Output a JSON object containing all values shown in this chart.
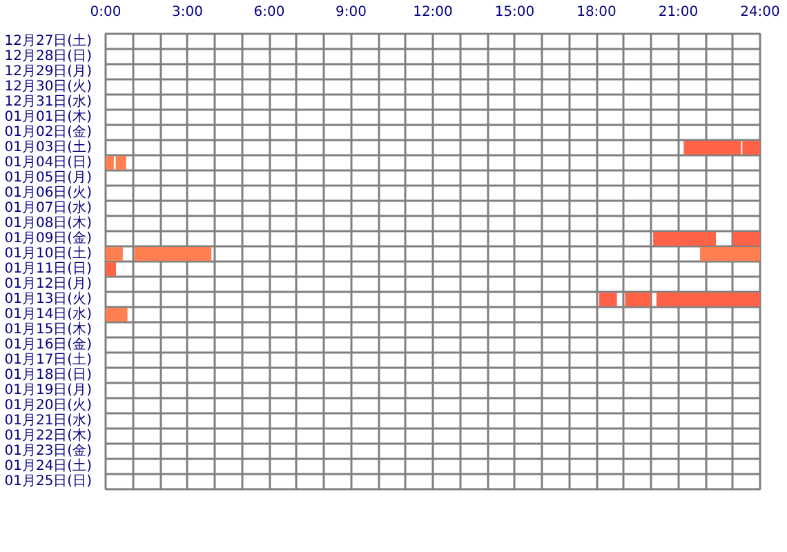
{
  "chart_data": {
    "type": "bar",
    "orientation": "horizontal",
    "categories": [
      "12月27日(土)",
      "12月28日(日)",
      "12月29日(月)",
      "12月30日(火)",
      "12月31日(水)",
      "01月01日(木)",
      "01月02日(金)",
      "01月03日(土)",
      "01月04日(日)",
      "01月05日(月)",
      "01月06日(火)",
      "01月07日(水)",
      "01月08日(木)",
      "01月09日(金)",
      "01月10日(土)",
      "01月11日(日)",
      "01月12日(月)",
      "01月13日(火)",
      "01月14日(水)",
      "01月15日(木)",
      "01月16日(金)",
      "01月17日(土)",
      "01月18日(日)",
      "01月19日(月)",
      "01月20日(火)",
      "01月21日(水)",
      "01月22日(木)",
      "01月23日(金)",
      "01月24日(土)",
      "01月25日(日)"
    ],
    "xlim": [
      0,
      24
    ],
    "xticks": [
      {
        "value": 0,
        "label": "0:00"
      },
      {
        "value": 1,
        "label": null
      },
      {
        "value": 2,
        "label": null
      },
      {
        "value": 3,
        "label": "3:00"
      },
      {
        "value": 4,
        "label": null
      },
      {
        "value": 5,
        "label": null
      },
      {
        "value": 6,
        "label": "6:00"
      },
      {
        "value": 7,
        "label": null
      },
      {
        "value": 8,
        "label": null
      },
      {
        "value": 9,
        "label": "9:00"
      },
      {
        "value": 10,
        "label": null
      },
      {
        "value": 11,
        "label": null
      },
      {
        "value": 12,
        "label": "12:00"
      },
      {
        "value": 13,
        "label": null
      },
      {
        "value": 14,
        "label": null
      },
      {
        "value": 15,
        "label": "15:00"
      },
      {
        "value": 16,
        "label": null
      },
      {
        "value": 17,
        "label": null
      },
      {
        "value": 18,
        "label": "18:00"
      },
      {
        "value": 19,
        "label": null
      },
      {
        "value": 20,
        "label": null
      },
      {
        "value": 21,
        "label": "21:00"
      },
      {
        "value": 22,
        "label": null
      },
      {
        "value": 23,
        "label": null
      },
      {
        "value": 24,
        "label": "24:00"
      }
    ],
    "grid": true,
    "series": [
      {
        "color": "#ff6347",
        "values": [
          null,
          null,
          null,
          null,
          null,
          null,
          null,
          2.1,
          null,
          null,
          null,
          null,
          null,
          2.3,
          null,
          0.38,
          null,
          0.65,
          null,
          null,
          null,
          null,
          null,
          null,
          null,
          null,
          null,
          null,
          null,
          null
        ],
        "base": [
          null,
          null,
          null,
          null,
          null,
          null,
          null,
          21.2,
          null,
          null,
          null,
          null,
          null,
          20.08,
          null,
          0,
          null,
          18.1,
          null,
          null,
          null,
          null,
          null,
          null,
          null,
          null,
          null,
          null,
          null,
          null
        ]
      },
      {
        "color": "#ff6347",
        "values": [
          null,
          null,
          null,
          null,
          null,
          null,
          null,
          0.65,
          null,
          null,
          null,
          null,
          null,
          1,
          null,
          null,
          null,
          0.95,
          null,
          null,
          null,
          null,
          null,
          null,
          null,
          null,
          null,
          null,
          null,
          null
        ],
        "base": [
          null,
          null,
          null,
          null,
          null,
          null,
          null,
          23.35,
          null,
          null,
          null,
          null,
          null,
          23,
          null,
          null,
          null,
          19.05,
          null,
          null,
          null,
          null,
          null,
          null,
          null,
          null,
          null,
          null,
          null,
          null
        ]
      },
      {
        "color": "#ff6347",
        "values": [
          null,
          null,
          null,
          null,
          null,
          null,
          null,
          null,
          null,
          null,
          null,
          null,
          null,
          null,
          null,
          null,
          null,
          3.8,
          null,
          null,
          null,
          null,
          null,
          null,
          null,
          null,
          null,
          null,
          null,
          null
        ],
        "base": [
          null,
          null,
          null,
          null,
          null,
          null,
          null,
          null,
          null,
          null,
          null,
          null,
          null,
          null,
          null,
          null,
          null,
          20.2,
          null,
          null,
          null,
          null,
          null,
          null,
          null,
          null,
          null,
          null,
          null,
          null
        ]
      },
      {
        "color": "#ff7f50",
        "values": [
          null,
          null,
          null,
          null,
          null,
          null,
          null,
          null,
          0.3,
          null,
          null,
          null,
          null,
          null,
          0.63,
          null,
          null,
          null,
          0.8,
          null,
          null,
          null,
          null,
          null,
          null,
          null,
          null,
          null,
          null,
          null
        ],
        "base": [
          null,
          null,
          null,
          null,
          null,
          null,
          null,
          null,
          0,
          null,
          null,
          null,
          null,
          null,
          0,
          null,
          null,
          null,
          0,
          null,
          null,
          null,
          null,
          null,
          null,
          null,
          null,
          null,
          null,
          null
        ]
      },
      {
        "color": "#ff7f50",
        "values": [
          null,
          null,
          null,
          null,
          null,
          null,
          null,
          null,
          0.38,
          null,
          null,
          null,
          null,
          null,
          2.83,
          null,
          null,
          null,
          null,
          null,
          null,
          null,
          null,
          null,
          null,
          null,
          null,
          null,
          null,
          null
        ],
        "base": [
          null,
          null,
          null,
          null,
          null,
          null,
          null,
          null,
          0.37,
          null,
          null,
          null,
          null,
          null,
          1.05,
          null,
          null,
          null,
          null,
          null,
          null,
          null,
          null,
          null,
          null,
          null,
          null,
          null,
          null,
          null
        ]
      },
      {
        "color": "#ff7f50",
        "values": [
          null,
          null,
          null,
          null,
          null,
          null,
          null,
          null,
          null,
          null,
          null,
          null,
          null,
          null,
          2.2,
          null,
          null,
          null,
          null,
          null,
          null,
          null,
          null,
          null,
          null,
          null,
          null,
          null,
          null,
          null
        ],
        "base": [
          null,
          null,
          null,
          null,
          null,
          null,
          null,
          null,
          null,
          null,
          null,
          null,
          null,
          null,
          21.8,
          null,
          null,
          null,
          null,
          null,
          null,
          null,
          null,
          null,
          null,
          null,
          null,
          null,
          null,
          null
        ]
      }
    ]
  }
}
